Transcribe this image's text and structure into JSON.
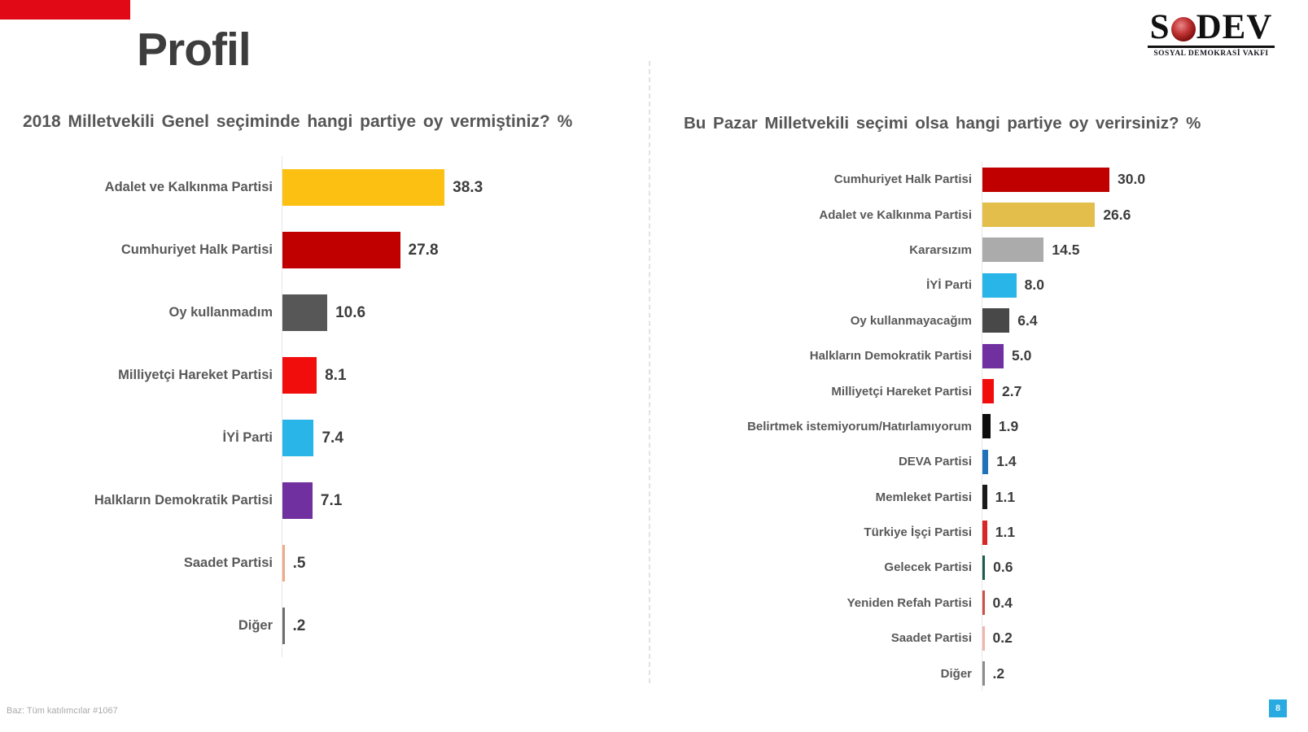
{
  "header": {
    "title": "Profil",
    "accent_color": "#E00915",
    "logo": {
      "prefix": "S",
      "suffix": "DEV",
      "rose_icon": "red-rose",
      "subtitle": "SOSYAL DEMOKRASİ VAKFI"
    }
  },
  "footer": {
    "base_note": "Baz: Tüm katılımcılar #1067",
    "page_number": "8"
  },
  "chart_data": [
    {
      "type": "bar",
      "orientation": "horizontal",
      "title": "2018 Milletvekili Genel seçiminde hangi partiye oy vermiştiniz? %",
      "xlim": [
        0,
        40
      ],
      "grid": false,
      "categories": [
        "Adalet ve Kalkınma Partisi",
        "Cumhuriyet Halk Partisi",
        "Oy kullanmadım",
        "Milliyetçi Hareket Partisi",
        "İYİ Parti",
        "Halkların Demokratik Partisi",
        "Saadet Partisi",
        "Diğer"
      ],
      "values": [
        38.3,
        27.8,
        10.6,
        8.1,
        7.4,
        7.1,
        0.5,
        0.2
      ],
      "value_labels": [
        "38.3",
        "27.8",
        "10.6",
        "8.1",
        "7.4",
        "7.1",
        ".5",
        ".2"
      ],
      "colors": [
        "#FCC013",
        "#C00000",
        "#575757",
        "#F20D0D",
        "#29B5E8",
        "#7030A0",
        "#F3A988",
        "#6E6E6E"
      ]
    },
    {
      "type": "bar",
      "orientation": "horizontal",
      "title": "Bu Pazar Milletvekili seçimi olsa hangi partiye oy verirsiniz? %",
      "xlim": [
        0,
        35
      ],
      "grid": false,
      "categories": [
        "Cumhuriyet Halk Partisi",
        "Adalet ve Kalkınma Partisi",
        "Kararsızım",
        "İYİ Parti",
        "Oy kullanmayacağım",
        "Halkların Demokratik Partisi",
        "Milliyetçi Hareket Partisi",
        "Belirtmek istemiyorum/Hatırlamıyorum",
        "DEVA Partisi",
        "Memleket Partisi",
        "Türkiye İşçi Partisi",
        "Gelecek Partisi",
        "Yeniden Refah Partisi",
        "Saadet Partisi",
        "Diğer"
      ],
      "values": [
        30.0,
        26.6,
        14.5,
        8.0,
        6.4,
        5.0,
        2.7,
        1.9,
        1.4,
        1.1,
        1.1,
        0.6,
        0.4,
        0.2,
        0.2
      ],
      "value_labels": [
        "30.0",
        "26.6",
        "14.5",
        "8.0",
        "6.4",
        "5.0",
        "2.7",
        "1.9",
        "1.4",
        "1.1",
        "1.1",
        "0.6",
        "0.4",
        "0.2",
        ".2"
      ],
      "colors": [
        "#C00000",
        "#E3BE4A",
        "#ABABAB",
        "#29B5E8",
        "#484848",
        "#7030A0",
        "#F20D0D",
        "#0D0D0D",
        "#2272B9",
        "#1A1A1A",
        "#D92626",
        "#1C5C4C",
        "#D05045",
        "#EFB6B0",
        "#8C8C8C"
      ]
    }
  ]
}
